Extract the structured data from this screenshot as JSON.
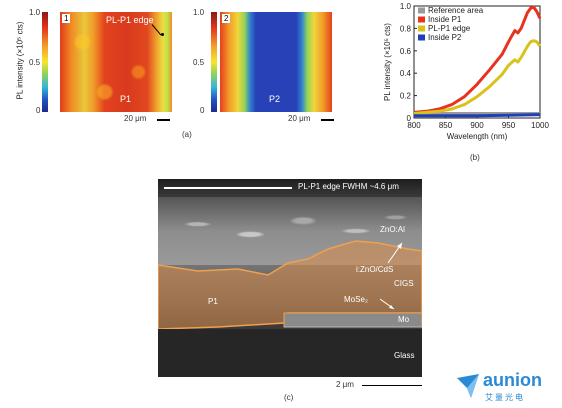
{
  "panel_a": {
    "colorbar": {
      "ticks": [
        "1.0",
        "0.5",
        "0"
      ],
      "label": "PL intensity (×10⁵ cts)"
    },
    "map1": {
      "number": "1",
      "edge_label": "PL-P1 edge",
      "region_label": "P1"
    },
    "map2": {
      "number": "2",
      "region_label": "P2"
    },
    "scale": "20 μm",
    "caption": "(a)"
  },
  "panel_c": {
    "fwhm_label": "PL-P1 edge FWHM ~4.6 μm",
    "layers": [
      "ZnO:Al",
      "i:ZnO/CdS",
      "CIGS",
      "MoSe₂",
      "Mo",
      "Glass"
    ],
    "p1_label": "P1",
    "scale": "2 μm",
    "caption": "(c)"
  },
  "watermark": {
    "brand": "aunion",
    "sub": "艾量光电"
  },
  "chart_data": {
    "type": "line",
    "xlabel": "Wavelength (nm)",
    "ylabel": "PL intensity (×10⁵ cts)",
    "xlim": [
      800,
      1000
    ],
    "ylim": [
      0,
      1.0
    ],
    "xticks": [
      "800",
      "850",
      "900",
      "950",
      "1000"
    ],
    "yticks": [
      "0",
      "0.2",
      "0.4",
      "0.6",
      "0.8",
      "1.0"
    ],
    "legend_placement": "top-left",
    "caption": "(b)",
    "series": [
      {
        "name": "Reference area",
        "color": "#9a9a9a",
        "x": [
          800,
          850,
          900,
          950,
          1000
        ],
        "y": [
          0.04,
          0.04,
          0.04,
          0.04,
          0.04
        ]
      },
      {
        "name": "Inside P1",
        "color": "#e8321f",
        "x": [
          800,
          820,
          840,
          860,
          880,
          900,
          920,
          940,
          950,
          960,
          965,
          970,
          980,
          985,
          990,
          995,
          1000
        ],
        "y": [
          0.05,
          0.06,
          0.08,
          0.12,
          0.19,
          0.3,
          0.43,
          0.57,
          0.68,
          0.78,
          0.76,
          0.8,
          0.94,
          0.98,
          0.99,
          0.95,
          0.89
        ]
      },
      {
        "name": "PL-P1 edge",
        "color": "#d9c21c",
        "x": [
          800,
          820,
          840,
          860,
          880,
          900,
          920,
          940,
          950,
          960,
          965,
          970,
          980,
          985,
          990,
          995,
          1000
        ],
        "y": [
          0.04,
          0.05,
          0.06,
          0.08,
          0.12,
          0.19,
          0.28,
          0.39,
          0.47,
          0.52,
          0.5,
          0.54,
          0.64,
          0.68,
          0.69,
          0.68,
          0.64
        ]
      },
      {
        "name": "Inside P2",
        "color": "#1f3fb8",
        "x": [
          800,
          850,
          900,
          950,
          1000
        ],
        "y": [
          0.02,
          0.02,
          0.02,
          0.025,
          0.03
        ]
      }
    ]
  }
}
